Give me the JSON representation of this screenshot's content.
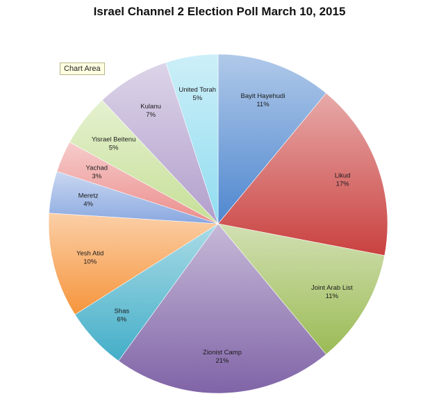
{
  "title": "Israel Channel 2 Election Poll March 10, 2015",
  "tooltip": "Chart Area",
  "chart_data": {
    "type": "pie",
    "title": "Israel Channel 2 Election Poll March 10, 2015",
    "slices": [
      {
        "label": "Bayit Hayehudi",
        "value": 11,
        "value_label": "11%",
        "color": "#4f87cf"
      },
      {
        "label": "Likud",
        "value": 17,
        "value_label": "17%",
        "color": "#c9413f"
      },
      {
        "label": "Joint Arab List",
        "value": 11,
        "value_label": "11%",
        "color": "#9bbb55"
      },
      {
        "label": "Zionist Camp",
        "value": 21,
        "value_label": "21%",
        "color": "#8064a7"
      },
      {
        "label": "Shas",
        "value": 6,
        "value_label": "6%",
        "color": "#43aec8"
      },
      {
        "label": "Yesh Atid",
        "value": 10,
        "value_label": "10%",
        "color": "#f6953c"
      },
      {
        "label": "Meretz",
        "value": 4,
        "value_label": "4%",
        "color": "#8aa8e0"
      },
      {
        "label": "Yachad",
        "value": 3,
        "value_label": "3%",
        "color": "#eb8d8c"
      },
      {
        "label": "Yisrael Beitenu",
        "value": 5,
        "value_label": "5%",
        "color": "#c6df97"
      },
      {
        "label": "Kulanu",
        "value": 7,
        "value_label": "7%",
        "color": "#b29fcc"
      },
      {
        "label": "United Torah",
        "value": 5,
        "value_label": "5%",
        "color": "#8fdcf0"
      }
    ]
  }
}
